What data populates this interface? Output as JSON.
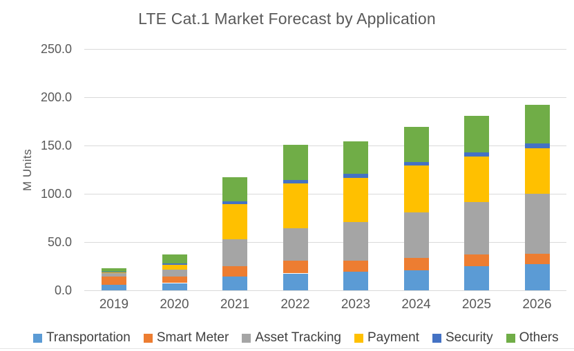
{
  "title": "LTE Cat.1 Market Forecast by Application",
  "y_axis": {
    "label": "M Units",
    "tick_labels": [
      "0.0",
      "50.0",
      "100.0",
      "150.0",
      "200.0",
      "250.0"
    ],
    "tick_step": 50
  },
  "colors": {
    "transportation": "#5B9BD5",
    "smart_meter": "#ED7D31",
    "asset_tracking": "#A5A5A5",
    "payment": "#FFC000",
    "security": "#4472C4",
    "others": "#70AD47",
    "gridline": "#D9D9D9",
    "text": "#595959"
  },
  "chart_data": {
    "type": "bar",
    "stacked": true,
    "title": "LTE Cat.1 Market Forecast by Application",
    "xlabel": "",
    "ylabel": "M Units",
    "ylim": [
      0,
      250
    ],
    "ytick_step": 50,
    "grid": true,
    "legend_position": "bottom",
    "categories": [
      "2019",
      "2020",
      "2021",
      "2022",
      "2023",
      "2024",
      "2025",
      "2026"
    ],
    "series": [
      {
        "name": "Transportation",
        "color": "#5B9BD5",
        "values": [
          6,
          7.5,
          14,
          17.5,
          19,
          21,
          25,
          27
        ]
      },
      {
        "name": "Smart Meter",
        "color": "#ED7D31",
        "values": [
          8,
          7,
          11,
          13,
          12,
          12.5,
          12,
          11
        ]
      },
      {
        "name": "Asset Tracking",
        "color": "#A5A5A5",
        "values": [
          4,
          7,
          28,
          34,
          39.5,
          47.5,
          54.5,
          62
        ]
      },
      {
        "name": "Payment",
        "color": "#FFC000",
        "values": [
          0.5,
          5,
          36.5,
          46.5,
          46,
          48,
          47,
          47
        ]
      },
      {
        "name": "Security",
        "color": "#4472C4",
        "values": [
          1,
          1.5,
          3,
          3.5,
          4,
          4,
          4.5,
          5
        ]
      },
      {
        "name": "Others",
        "color": "#70AD47",
        "values": [
          3.5,
          9,
          25,
          36.5,
          34,
          36.5,
          37.5,
          40
        ]
      }
    ],
    "totals": [
      23,
      37,
      117.5,
      151,
      154.5,
      169.5,
      180.5,
      192
    ]
  }
}
